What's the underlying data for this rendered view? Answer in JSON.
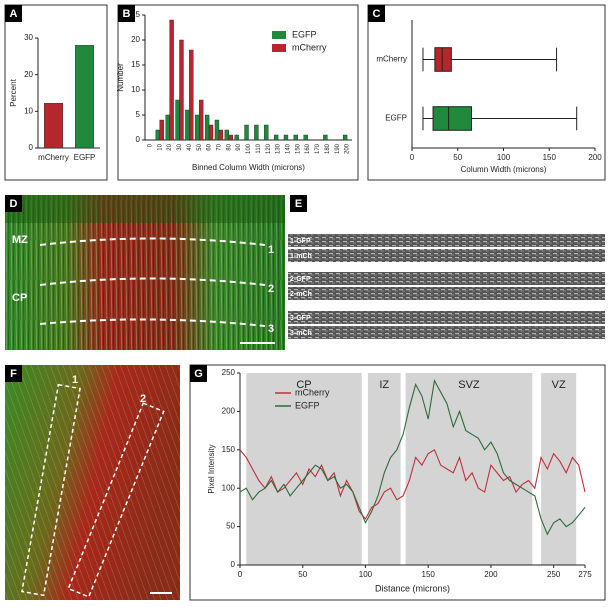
{
  "chart_data": [
    {
      "type": "bar",
      "label": "A",
      "ylabel": "Percent",
      "categories": [
        "mCherry",
        "EGFP"
      ],
      "values": [
        12.2,
        28
      ],
      "colors": [
        "#b5272d",
        "#1f8a3c"
      ],
      "ylim": [
        0,
        30
      ],
      "yticks": [
        0,
        10,
        20,
        30
      ]
    },
    {
      "type": "bar",
      "label": "B",
      "xlabel": "Binned Column Width (microns)",
      "ylabel": "Number",
      "categories": [
        "0",
        "10",
        "20",
        "30",
        "40",
        "50",
        "60",
        "70",
        "80",
        "90",
        "100",
        "110",
        "120",
        "130",
        "140",
        "150",
        "160",
        "170",
        "180",
        "190",
        "200"
      ],
      "series": [
        {
          "name": "EGFP",
          "color": "#1f8a3c",
          "values": [
            0,
            2,
            5,
            8,
            6,
            5,
            5,
            4,
            2,
            1,
            3,
            3,
            3,
            1,
            1,
            1,
            1,
            0,
            1,
            0,
            1
          ]
        },
        {
          "name": "mCherry",
          "color": "#b5272d",
          "values": [
            0,
            4,
            24,
            20,
            18,
            8,
            3,
            2,
            1,
            0,
            0,
            0,
            0,
            0,
            0,
            0,
            0,
            0,
            0,
            0,
            0
          ]
        }
      ],
      "ylim": [
        0,
        25
      ],
      "yticks": [
        0,
        5,
        10,
        15,
        20,
        25
      ],
      "legend": "upper right"
    },
    {
      "type": "box",
      "label": "C",
      "xlabel": "Column Width (microns)",
      "categories": [
        "mCherry",
        "EGFP"
      ],
      "colors": [
        "#b5272d",
        "#1f8a3c"
      ],
      "min": [
        12,
        12
      ],
      "q1": [
        25,
        23
      ],
      "median": [
        33,
        40
      ],
      "q3": [
        43,
        65
      ],
      "max": [
        158,
        180
      ],
      "xlim": [
        0,
        200
      ],
      "xticks": [
        0,
        50,
        100,
        150,
        200
      ]
    },
    {
      "type": "line",
      "label": "G",
      "xlabel": "Distance (microns)",
      "ylabel": "Pixel Intensity",
      "x": [
        0,
        5,
        10,
        15,
        20,
        25,
        30,
        35,
        40,
        45,
        50,
        55,
        60,
        65,
        70,
        75,
        80,
        85,
        90,
        95,
        100,
        105,
        110,
        115,
        120,
        125,
        130,
        135,
        140,
        145,
        150,
        155,
        160,
        165,
        170,
        175,
        180,
        185,
        190,
        195,
        200,
        205,
        210,
        215,
        220,
        225,
        230,
        235,
        240,
        245,
        250,
        255,
        260,
        265,
        270,
        275
      ],
      "series": [
        {
          "name": "mCherry",
          "color": "#c0303a",
          "values": [
            150,
            140,
            125,
            110,
            100,
            115,
            95,
            100,
            110,
            120,
            105,
            125,
            115,
            130,
            110,
            120,
            90,
            110,
            95,
            70,
            60,
            75,
            80,
            95,
            100,
            85,
            90,
            110,
            140,
            130,
            145,
            150,
            130,
            125,
            120,
            140,
            110,
            120,
            100,
            95,
            130,
            120,
            110,
            115,
            95,
            105,
            110,
            100,
            140,
            125,
            145,
            135,
            120,
            140,
            130,
            95
          ]
        },
        {
          "name": "EGFP",
          "color": "#2e6b3a",
          "values": [
            95,
            100,
            85,
            95,
            100,
            110,
            95,
            105,
            90,
            100,
            110,
            120,
            130,
            125,
            110,
            115,
            100,
            105,
            95,
            75,
            55,
            70,
            90,
            120,
            140,
            150,
            170,
            205,
            235,
            220,
            190,
            240,
            225,
            210,
            180,
            200,
            175,
            170,
            165,
            150,
            160,
            145,
            120,
            110,
            105,
            100,
            95,
            90,
            60,
            40,
            55,
            60,
            50,
            55,
            65,
            75
          ]
        }
      ],
      "regions": [
        {
          "label": "CP",
          "x": [
            5,
            97
          ]
        },
        {
          "label": "IZ",
          "x": [
            102,
            128
          ]
        },
        {
          "label": "SVZ",
          "x": [
            132,
            233
          ]
        },
        {
          "label": "VZ",
          "x": [
            240,
            268
          ]
        }
      ],
      "xlim": [
        0,
        275
      ],
      "xticks": [
        0,
        50,
        100,
        150,
        200,
        250,
        275
      ],
      "ylim": [
        0,
        250
      ],
      "yticks": [
        0,
        50,
        100,
        150,
        200,
        250
      ],
      "legend": "upper left"
    }
  ],
  "figure_panels": [
    {
      "label": "D",
      "texts": [
        "MZ",
        "CP",
        "1",
        "2",
        "3"
      ]
    },
    {
      "label": "E",
      "strips": [
        "1-GFP",
        "1-mCh",
        "2-GFP",
        "2-mCh",
        "3-GFP",
        "3-mCh"
      ]
    },
    {
      "label": "F",
      "texts": [
        "1",
        "2"
      ]
    }
  ]
}
